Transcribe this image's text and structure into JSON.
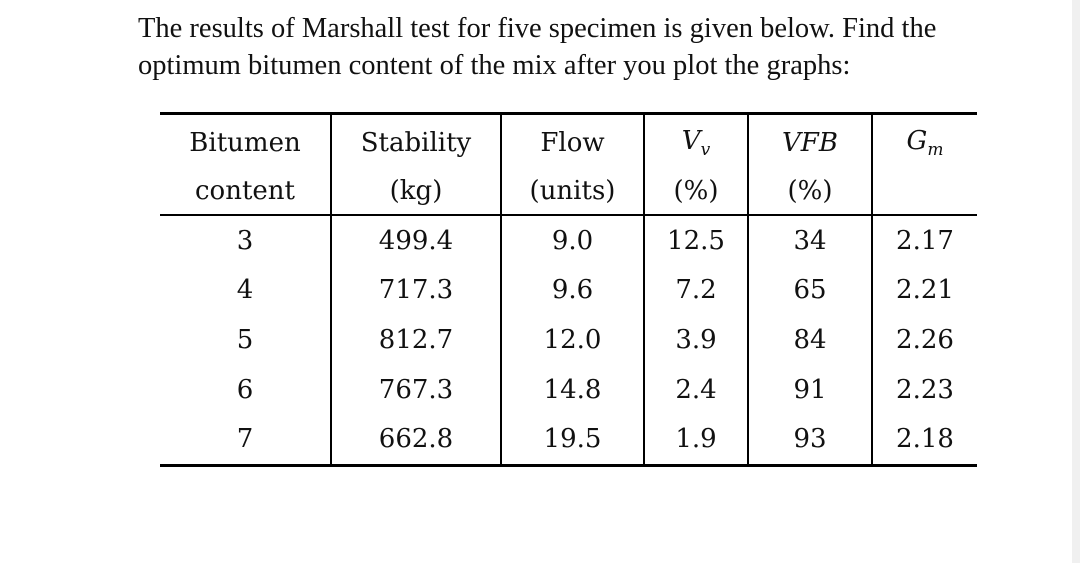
{
  "question": {
    "line1": "The results of Marshall test for five specimen is given below. Find the",
    "line2": "optimum bitumen content of the mix after you plot the graphs:"
  },
  "table": {
    "header_row1": [
      "Bitumen",
      "Stability",
      "Flow",
      "VFB"
    ],
    "header_row2": [
      "content",
      "(kg)",
      "(units)",
      "(%)",
      "(%)"
    ],
    "vv_symbol": "V",
    "vv_subscript": "v",
    "gm_symbol": "G",
    "gm_subscript": "m",
    "rows": [
      [
        "3",
        "499.4",
        "9.0",
        "12.5",
        "34",
        "2.17"
      ],
      [
        "4",
        "717.3",
        "9.6",
        "7.2",
        "65",
        "2.21"
      ],
      [
        "5",
        "812.7",
        "12.0",
        "3.9",
        "84",
        "2.26"
      ],
      [
        "6",
        "767.3",
        "14.8",
        "2.4",
        "91",
        "2.23"
      ],
      [
        "7",
        "662.8",
        "19.5",
        "1.9",
        "93",
        "2.18"
      ]
    ]
  }
}
